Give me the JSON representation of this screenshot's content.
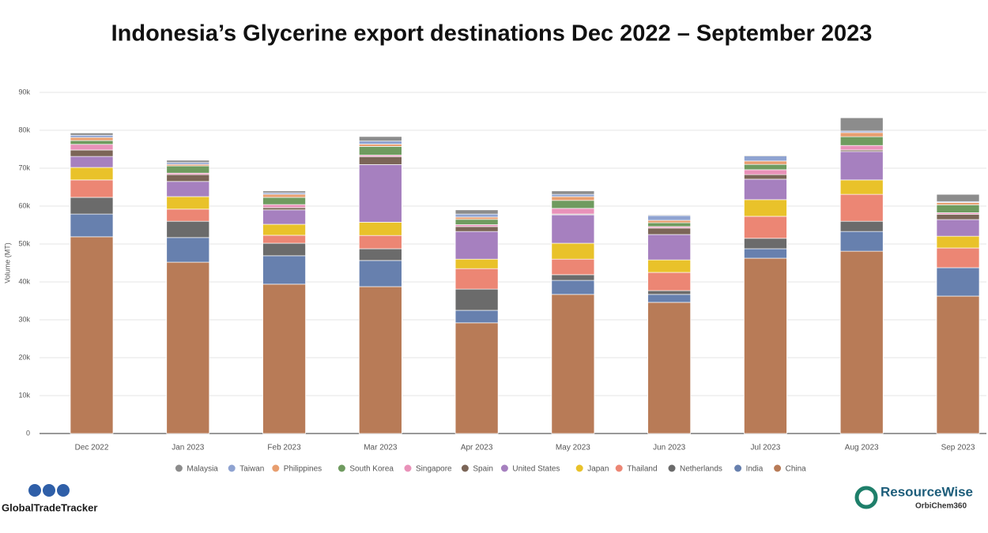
{
  "chart_data": {
    "type": "stacked_bar",
    "title": "Indonesia’s Glycerine export destinations Dec 2022 – September 2023",
    "y_label": "Volume (MT)",
    "categories": [
      "Dec 2022",
      "Jan 2023",
      "Feb 2023",
      "Mar 2023",
      "Apr 2023",
      "May 2023",
      "Jun 2023",
      "Jul 2023",
      "Aug 2023",
      "Sep 2023"
    ],
    "series": [
      {
        "name": "China",
        "color": "#b87b57",
        "values": [
          51900,
          45200,
          39400,
          38750,
          29200,
          36700,
          34600,
          46250,
          48100,
          36250
        ]
      },
      {
        "name": "India",
        "color": "#6780ae",
        "values": [
          6000,
          6500,
          7500,
          6900,
          3300,
          3700,
          2100,
          2500,
          5200,
          7500
        ]
      },
      {
        "name": "Netherlands",
        "color": "#6b6b6b",
        "values": [
          4400,
          4300,
          3300,
          3100,
          5600,
          1500,
          1000,
          2750,
          2700,
          0
        ]
      },
      {
        "name": "Thailand",
        "color": "#ec8674",
        "values": [
          4600,
          3200,
          2100,
          3500,
          5400,
          4100,
          4800,
          5800,
          7100,
          5200
        ]
      },
      {
        "name": "Japan",
        "color": "#e9c22a",
        "values": [
          3300,
          3300,
          2900,
          3500,
          2500,
          4200,
          3300,
          4400,
          3800,
          3100
        ]
      },
      {
        "name": "United States",
        "color": "#a680bf",
        "values": [
          2900,
          4000,
          3800,
          15200,
          7300,
          7500,
          6700,
          5400,
          7500,
          4400
        ]
      },
      {
        "name": "Spain",
        "color": "#7b6557",
        "values": [
          1700,
          1800,
          600,
          2100,
          1300,
          200,
          1700,
          1200,
          400,
          1400
        ]
      },
      {
        "name": "Singapore",
        "color": "#e992b9",
        "values": [
          1500,
          400,
          800,
          400,
          500,
          1500,
          400,
          1300,
          1200,
          400
        ]
      },
      {
        "name": "South Korea",
        "color": "#6f9b5f",
        "values": [
          1000,
          1900,
          1900,
          2300,
          1400,
          2100,
          1000,
          1400,
          2300,
          2100
        ]
      },
      {
        "name": "Philippines",
        "color": "#e89e6f",
        "values": [
          800,
          400,
          800,
          600,
          600,
          1000,
          650,
          900,
          1100,
          600
        ]
      },
      {
        "name": "Taiwan",
        "color": "#8fa3d1",
        "values": [
          600,
          500,
          400,
          800,
          800,
          600,
          1250,
          1300,
          400,
          250
        ]
      },
      {
        "name": "Malaysia",
        "color": "#8c8c8c",
        "values": [
          600,
          600,
          500,
          1200,
          1100,
          900,
          200,
          200,
          3500,
          1900
        ]
      }
    ],
    "ylim": [
      0,
      90000
    ],
    "yticks": [
      0,
      {
        "value": 10000,
        "label": "10k"
      },
      {
        "value": 20000,
        "label": "20k"
      },
      {
        "value": 30000,
        "label": "30k"
      },
      {
        "value": 40000,
        "label": "40k"
      },
      {
        "value": 50000,
        "label": "50k"
      },
      {
        "value": 60000,
        "label": "60k"
      },
      {
        "value": 70000,
        "label": "70k"
      },
      {
        "value": 80000,
        "label": "80k"
      },
      {
        "value": 90000,
        "label": "90k"
      }
    ],
    "grid": true
  },
  "logos": {
    "left": "GlobalTradeTracker",
    "right": "ResourceWise",
    "right_sub": "OrbiChem360"
  }
}
